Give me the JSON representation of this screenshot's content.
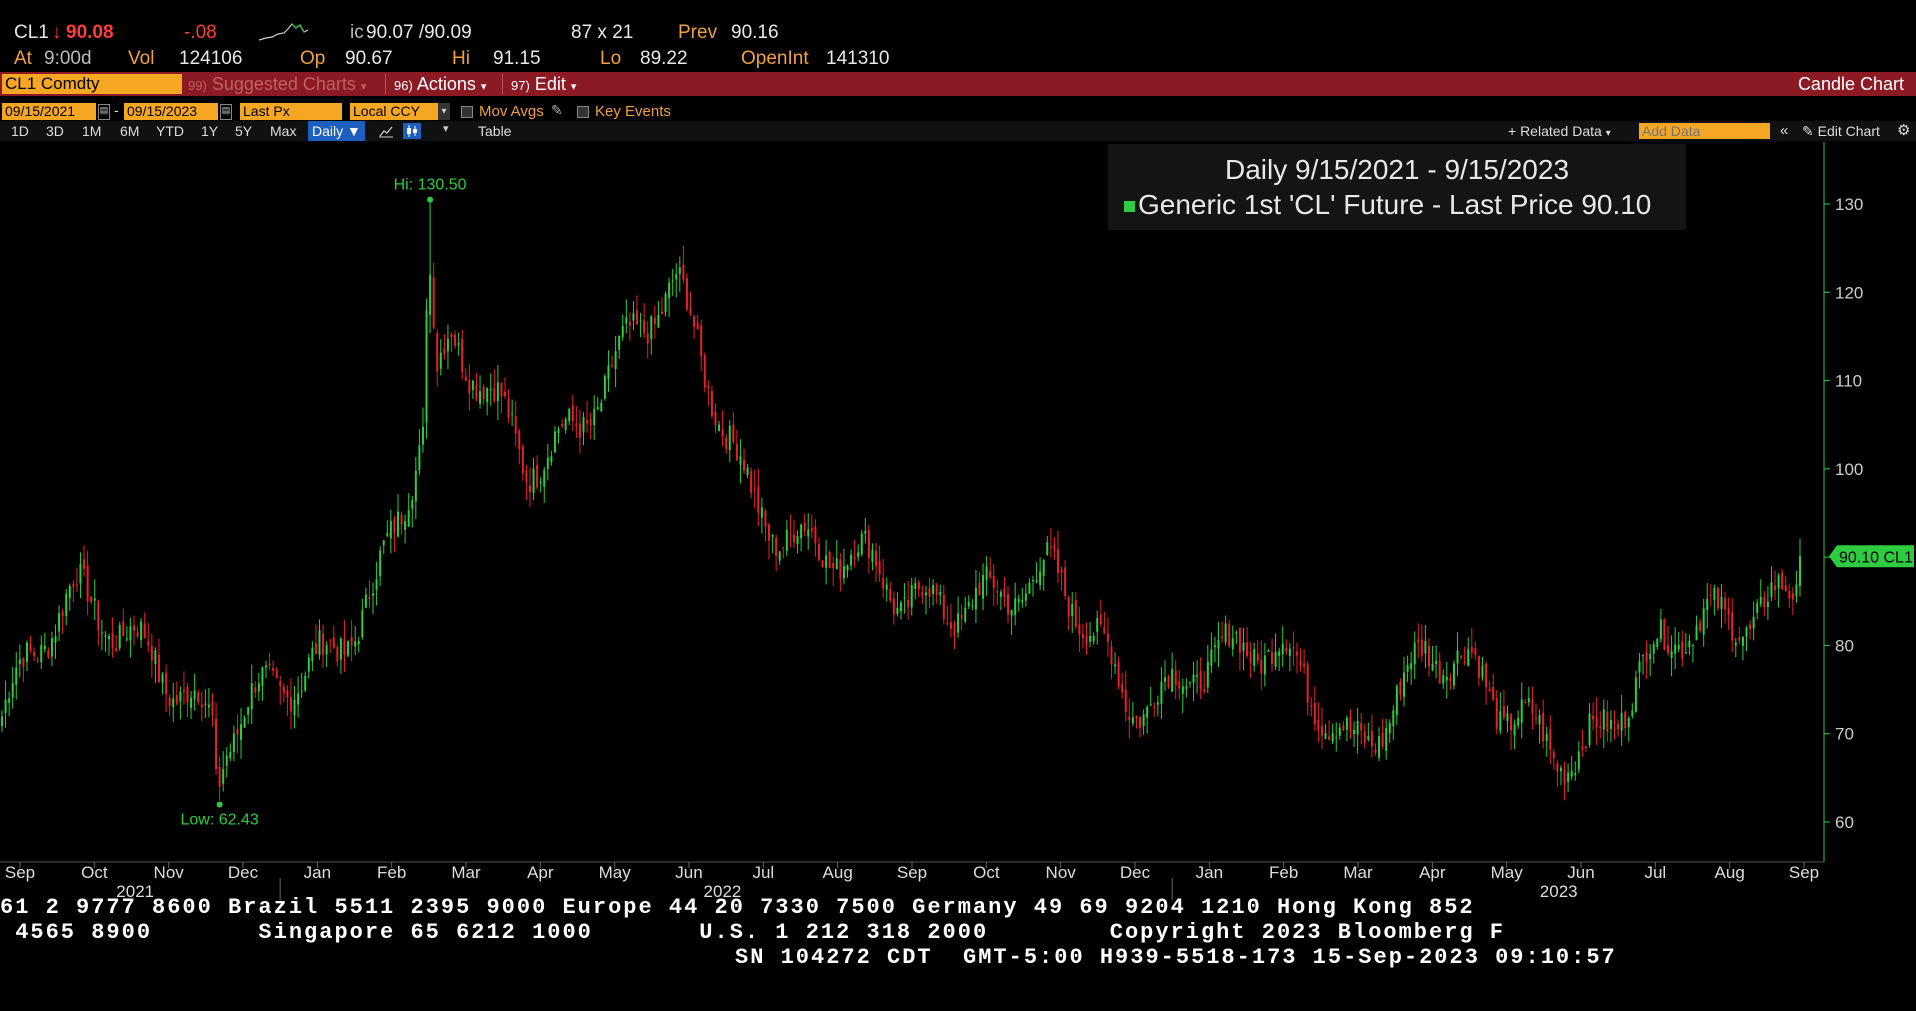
{
  "quote": {
    "ticker": "CL1",
    "arrow": "↓",
    "last": "90.08",
    "change": "-.08",
    "ic_label": "ic",
    "bid_ask": "90.07 /90.09",
    "size": "87 x 21",
    "prev_label": "Prev",
    "prev": "90.16",
    "at_label": "At",
    "at_time": "9:00d",
    "vol_label": "Vol",
    "vol": "124106",
    "op_label": "Op",
    "op": "90.67",
    "hi_label": "Hi",
    "hi": "91.15",
    "lo_label": "Lo",
    "lo": "89.22",
    "openint_label": "OpenInt",
    "openint": "141310"
  },
  "menubar": {
    "security": "CL1 Comdty",
    "suggested_num": "99)",
    "suggested": "Suggested Charts",
    "actions_num": "96)",
    "actions": "Actions",
    "edit_num": "97)",
    "edit": "Edit",
    "chart_type": "Candle Chart"
  },
  "controls": {
    "start_date": "09/15/2021",
    "end_date": "09/15/2023",
    "dash": "-",
    "field": "Last Px",
    "currency": "Local CCY",
    "mov_avgs": "Mov Avgs",
    "key_events": "Key Events"
  },
  "toolbar": {
    "ranges": [
      "1D",
      "3D",
      "1M",
      "6M",
      "YTD",
      "1Y",
      "5Y",
      "Max"
    ],
    "period": "Daily",
    "table": "Table",
    "related_data": "+ Related Data",
    "add_data_placeholder": "Add Data",
    "edit_chart": "Edit Chart"
  },
  "chart_data": {
    "type": "candlestick",
    "title": "Daily 9/15/2021 - 9/15/2023",
    "series_name": "Generic 1st 'CL' Future - Last Price",
    "last_value": "90.10",
    "last_tag": "90.10 CL1",
    "hi_label": "Hi: 130.50",
    "low_label": "Low: 62.43",
    "ylim": [
      55,
      137
    ],
    "yticks": [
      60,
      70,
      80,
      90,
      100,
      110,
      120,
      130
    ],
    "ytick_labels": [
      "60",
      "70",
      "80",
      "",
      "100",
      "110",
      "120",
      "130"
    ],
    "x_months": [
      "Sep",
      "Oct",
      "Nov",
      "Dec",
      "Jan",
      "Feb",
      "Mar",
      "Apr",
      "May",
      "Jun",
      "Jul",
      "Aug",
      "Sep",
      "Oct",
      "Nov",
      "Dec",
      "Jan",
      "Feb",
      "Mar",
      "Apr",
      "May",
      "Jun",
      "Jul",
      "Aug",
      "Sep"
    ],
    "x_years": [
      "2021",
      "2022",
      "2023"
    ],
    "monthly_close": [
      {
        "month": "2021-09",
        "value": 72
      },
      {
        "month": "2021-10",
        "value": 84
      },
      {
        "month": "2021-11",
        "value": 82
      },
      {
        "month": "2021-12",
        "value": 68
      },
      {
        "month": "2022-01",
        "value": 76
      },
      {
        "month": "2022-02",
        "value": 89
      },
      {
        "month": "2022-03",
        "value": 112
      },
      {
        "month": "2022-04",
        "value": 102
      },
      {
        "month": "2022-05",
        "value": 110
      },
      {
        "month": "2022-06",
        "value": 118
      },
      {
        "month": "2022-07",
        "value": 99
      },
      {
        "month": "2022-08",
        "value": 90
      },
      {
        "month": "2022-09",
        "value": 84
      },
      {
        "month": "2022-10",
        "value": 88
      },
      {
        "month": "2022-11",
        "value": 86
      },
      {
        "month": "2022-12",
        "value": 74
      },
      {
        "month": "2023-01",
        "value": 80
      },
      {
        "month": "2023-02",
        "value": 77
      },
      {
        "month": "2023-03",
        "value": 70
      },
      {
        "month": "2023-04",
        "value": 80
      },
      {
        "month": "2023-05",
        "value": 71
      },
      {
        "month": "2023-06",
        "value": 70
      },
      {
        "month": "2023-07",
        "value": 77
      },
      {
        "month": "2023-08",
        "value": 82
      },
      {
        "month": "2023-09",
        "value": 90.1
      }
    ],
    "high": {
      "month": "2022-03",
      "value": 130.5
    },
    "low": {
      "month": "2021-12",
      "value": 62.43
    },
    "up_color": "#2ecc40",
    "down_color": "#e8202a",
    "axis_color": "#2ecc40",
    "grid": false
  },
  "footer": {
    "line1": "61 2 9777 8600 Brazil 5511 2395 9000 Europe 44 20 7330 7500 Germany 49 69 9204 1210 Hong Kong 852",
    "line2": " 4565 8900       Singapore 65 6212 1000       U.S. 1 212 318 2000        Copyright 2023 Bloomberg F",
    "line3": "SN 104272 CDT  GMT-5:00 H939-5518-173 15-Sep-2023 09:10:57"
  }
}
